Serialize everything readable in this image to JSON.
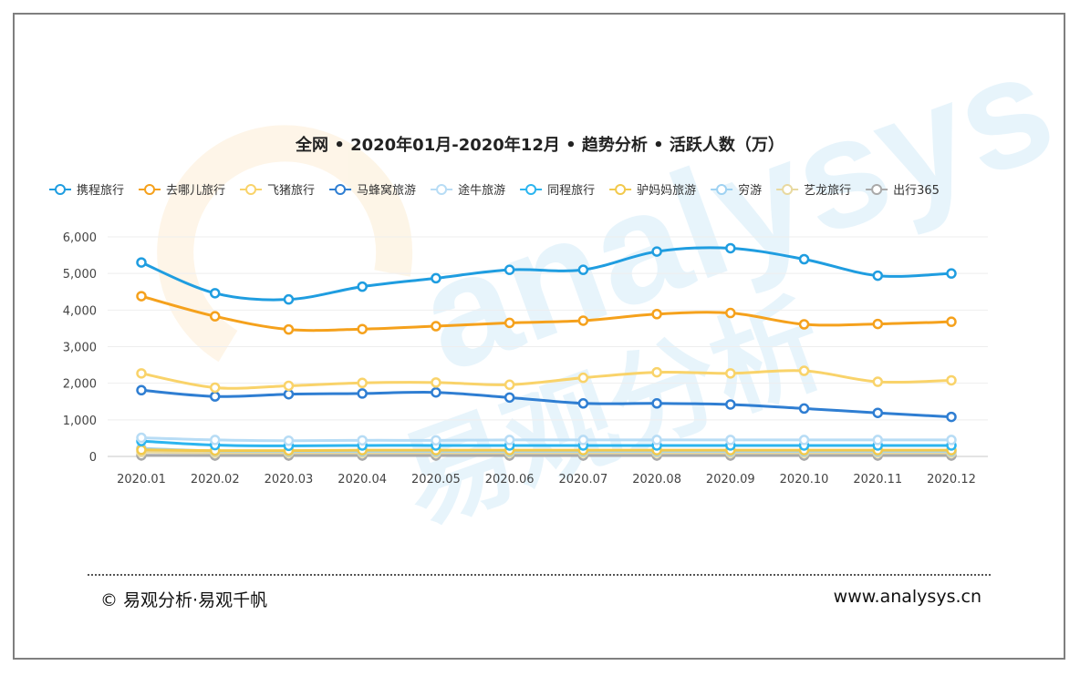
{
  "chart_data": {
    "type": "line",
    "title": "全网 • 2020年01月-2020年12月 • 趋势分析 • 活跃人数（万）",
    "x": [
      "2020.01",
      "2020.02",
      "2020.03",
      "2020.04",
      "2020.05",
      "2020.06",
      "2020.07",
      "2020.08",
      "2020.09",
      "2020.10",
      "2020.11",
      "2020.12"
    ],
    "y_ticks": [
      "0",
      "1,000",
      "2,000",
      "3,000",
      "4,000",
      "5,000",
      "6,000"
    ],
    "ylim": [
      0,
      6000
    ],
    "grid": true,
    "legend_position": "top",
    "series": [
      {
        "name": "携程旅行",
        "color": "#1f9de0",
        "values": [
          5300,
          4460,
          4290,
          4640,
          4870,
          5100,
          5100,
          5600,
          5690,
          5390,
          4940,
          5000
        ]
      },
      {
        "name": "去哪儿旅行",
        "color": "#f5a11c",
        "values": [
          4380,
          3830,
          3470,
          3480,
          3560,
          3650,
          3710,
          3890,
          3920,
          3610,
          3620,
          3680
        ]
      },
      {
        "name": "飞猪旅行",
        "color": "#f9d36a",
        "values": [
          2270,
          1880,
          1930,
          2010,
          2020,
          1960,
          2150,
          2300,
          2270,
          2340,
          2040,
          2080
        ]
      },
      {
        "name": "马蜂窝旅游",
        "color": "#2f7ed2",
        "values": [
          1810,
          1640,
          1700,
          1720,
          1750,
          1610,
          1450,
          1450,
          1420,
          1310,
          1190,
          1080
        ]
      },
      {
        "name": "途牛旅游",
        "color": "#b7dcf5",
        "values": [
          510,
          450,
          430,
          440,
          440,
          450,
          450,
          450,
          450,
          450,
          450,
          450
        ]
      },
      {
        "name": "同程旅行",
        "color": "#2cb5ef",
        "values": [
          420,
          310,
          290,
          300,
          300,
          300,
          300,
          300,
          300,
          300,
          300,
          300
        ]
      },
      {
        "name": "驴妈妈旅游",
        "color": "#f2c94c",
        "values": [
          180,
          160,
          160,
          170,
          170,
          170,
          170,
          170,
          170,
          170,
          170,
          170
        ]
      },
      {
        "name": "穷游",
        "color": "#9fd2f2",
        "values": [
          220,
          150,
          140,
          140,
          140,
          140,
          140,
          140,
          140,
          140,
          140,
          140
        ]
      },
      {
        "name": "艺龙旅行",
        "color": "#e8d9a0",
        "values": [
          120,
          100,
          100,
          100,
          100,
          100,
          100,
          100,
          100,
          100,
          100,
          100
        ]
      },
      {
        "name": "出行365",
        "color": "#a9a9a9",
        "values": [
          30,
          25,
          25,
          25,
          25,
          25,
          25,
          25,
          25,
          25,
          25,
          25
        ]
      }
    ]
  },
  "footer": {
    "copyright": "© 易观分析·易观千帆",
    "website": "www.analysys.cn"
  }
}
